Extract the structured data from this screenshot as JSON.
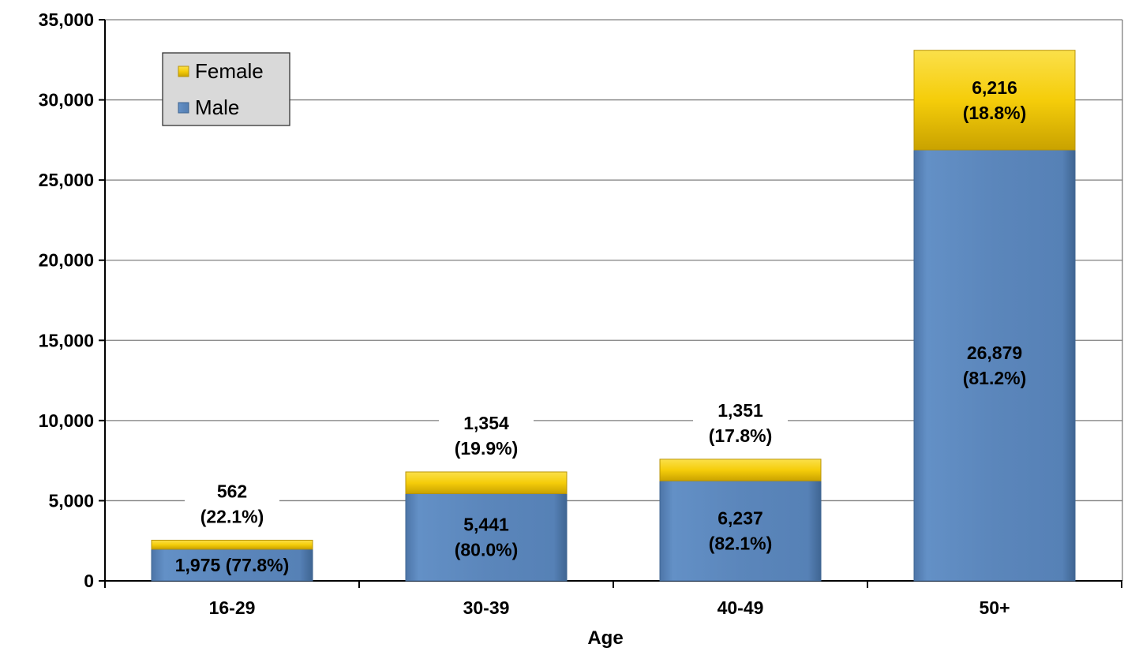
{
  "chart_data": {
    "type": "bar",
    "stacked": true,
    "title": "",
    "xlabel": "Age",
    "ylabel": "",
    "ylim": [
      0,
      35000
    ],
    "yticks": [
      0,
      5000,
      10000,
      15000,
      20000,
      25000,
      30000,
      35000
    ],
    "ytick_labels": [
      "0",
      "5,000",
      "10,000",
      "15,000",
      "20,000",
      "25,000",
      "30,000",
      "35,000"
    ],
    "categories": [
      "16-29",
      "30-39",
      "40-49",
      "50+"
    ],
    "grid": true,
    "legend_position": "top-left",
    "series": [
      {
        "name": "Male",
        "color": "#5b86bb",
        "values": [
          1975,
          5441,
          6237,
          26879
        ],
        "labels": [
          [
            "1,975 (77.8%)"
          ],
          [
            "5,441",
            "(80.0%)"
          ],
          [
            "6,237",
            "(82.1%)"
          ],
          [
            "26,879",
            "(81.2%)"
          ]
        ]
      },
      {
        "name": "Female",
        "color": "#f5cd0a",
        "values": [
          562,
          1354,
          1351,
          6216
        ],
        "labels": [
          [
            "562",
            "(22.1%)"
          ],
          [
            "1,354",
            "(19.9%)"
          ],
          [
            "1,351",
            "(17.8%)"
          ],
          [
            "6,216",
            "(18.8%)"
          ]
        ]
      }
    ],
    "legend": [
      "Female",
      "Male"
    ]
  }
}
